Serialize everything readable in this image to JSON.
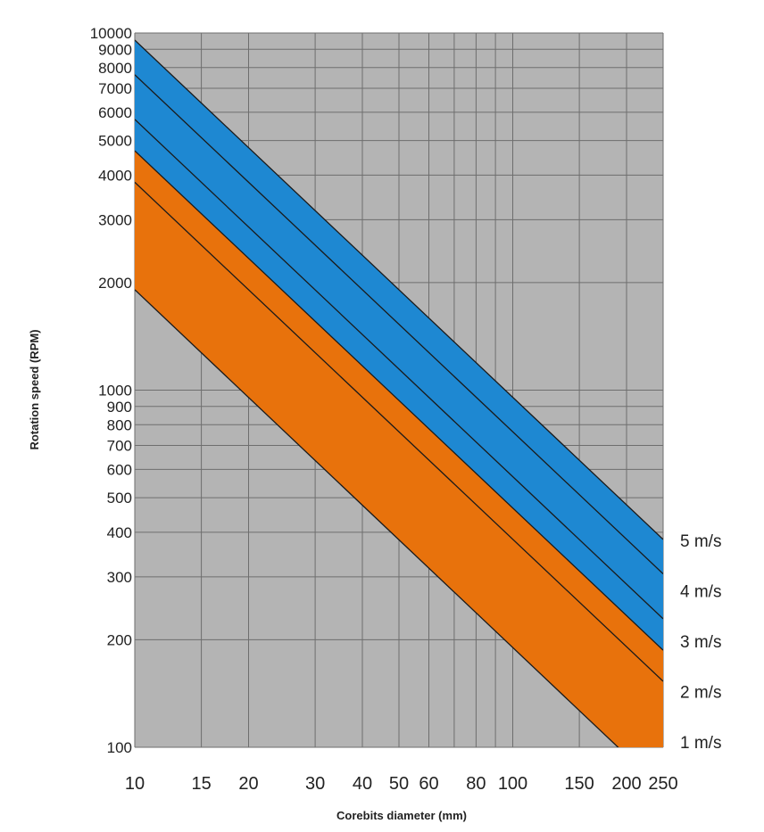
{
  "chart_data": {
    "type": "area",
    "xlabel": "Corebits diameter (mm)",
    "ylabel": "Rotation speed (RPM)",
    "x_scale": "log",
    "y_scale": "log",
    "xlim": [
      10,
      250
    ],
    "ylim": [
      100,
      10000
    ],
    "grid": true,
    "x_ticks": [
      10,
      15,
      20,
      30,
      40,
      50,
      60,
      80,
      100,
      150,
      200,
      250
    ],
    "x_gridlines": [
      10,
      15,
      20,
      30,
      40,
      50,
      60,
      70,
      80,
      90,
      100,
      150,
      200,
      250
    ],
    "y_ticks": [
      100,
      200,
      300,
      400,
      500,
      600,
      700,
      800,
      900,
      1000,
      2000,
      3000,
      4000,
      5000,
      6000,
      7000,
      8000,
      9000,
      10000
    ],
    "series": [
      {
        "name": "1 m/s",
        "x": [
          10,
          200
        ],
        "y": [
          1910,
          95
        ]
      },
      {
        "name": "2 m/s",
        "x": [
          10,
          250
        ],
        "y": [
          3820,
          153
        ]
      },
      {
        "name": "3 m/s",
        "x": [
          10,
          250
        ],
        "y": [
          4680,
          187
        ]
      },
      {
        "name": "4 m/s",
        "x": [
          10,
          250
        ],
        "y": [
          5730,
          229
        ]
      },
      {
        "name": "5 m/s",
        "x": [
          10,
          250
        ],
        "y": [
          7640,
          306
        ]
      },
      {
        "name": "",
        "x": [
          10,
          250
        ],
        "y": [
          9550,
          382
        ]
      }
    ],
    "bands": [
      {
        "from_series": 0,
        "to_series": 2,
        "color": "#E8720C"
      },
      {
        "from_series": 2,
        "to_series": 5,
        "color": "#1E88D2"
      }
    ],
    "colors": {
      "plot_bg": "#B4B4B4",
      "grid": "#6E6E6E",
      "line": "#1a1a1a"
    }
  }
}
